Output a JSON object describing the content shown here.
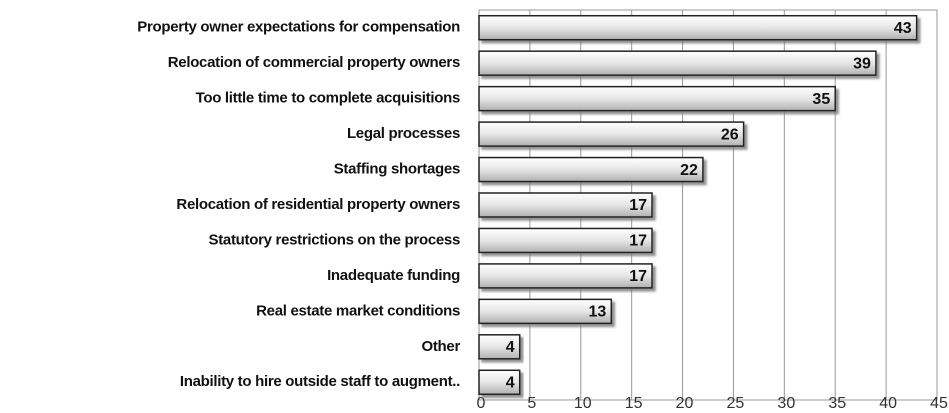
{
  "chart_data": {
    "type": "bar",
    "orientation": "horizontal",
    "categories": [
      "Property owner expectations for compensation",
      "Relocation of commercial property owners",
      "Too little time to complete acquisitions",
      "Legal processes",
      "Staffing shortages",
      "Relocation of residential property owners",
      "Statutory restrictions on the process",
      "Inadequate funding",
      "Real estate market conditions",
      "Other",
      "Inability to hire outside staff to augment.."
    ],
    "values": [
      43,
      39,
      35,
      26,
      22,
      17,
      17,
      17,
      13,
      4,
      4
    ],
    "color": "#d9d9d9",
    "xlim": [
      0,
      45
    ],
    "xticks": [
      0,
      5,
      10,
      15,
      20,
      25,
      30,
      35,
      40,
      45
    ],
    "grid": true
  }
}
